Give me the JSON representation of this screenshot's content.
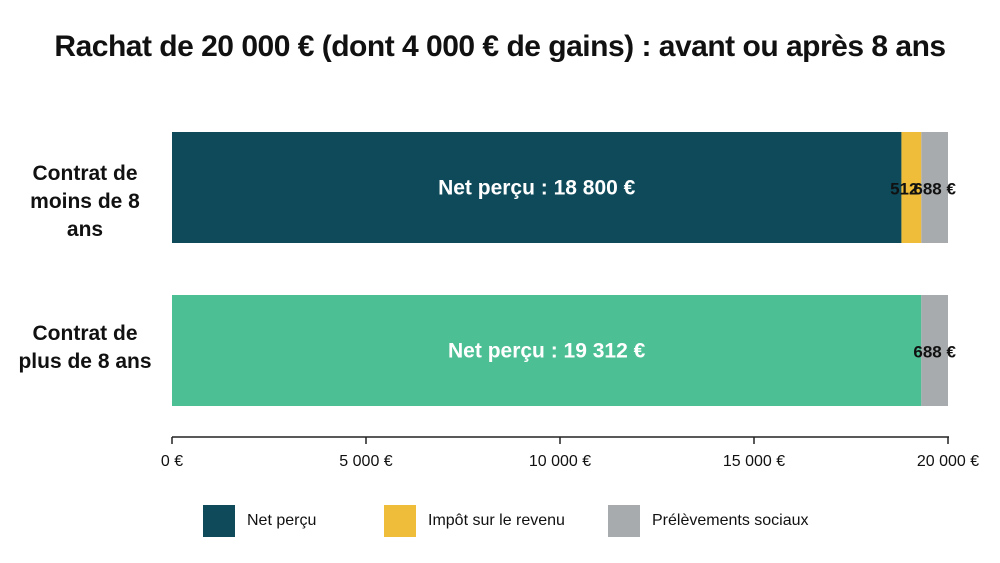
{
  "chart_data": {
    "type": "bar",
    "orientation": "horizontal",
    "stacked": true,
    "title": "Rachat de 20 000 € (dont 4 000 € de gains) : avant ou après 8 ans",
    "categories": [
      "Contrat de moins de 8 ans",
      "Contrat de plus de 8 ans"
    ],
    "category_lines": [
      [
        "Contrat de",
        "moins de 8 ans"
      ],
      [
        "Contrat de",
        "plus de 8 ans"
      ]
    ],
    "series": [
      {
        "name": "Net perçu",
        "values": [
          18800,
          19312
        ],
        "colors": [
          "#0e4a5a",
          "#4cbf94"
        ],
        "labels": [
          "Net perçu : 18 800 €",
          "Net perçu : 19 312 €"
        ],
        "label_color": "#ffffff"
      },
      {
        "name": "Impôt sur le revenu",
        "values": [
          512,
          0
        ],
        "colors": [
          "#f0bd3a",
          "#f0bd3a"
        ],
        "labels": [
          "512 €",
          ""
        ],
        "label_color": "#111111"
      },
      {
        "name": "Prélèvements sociaux",
        "values": [
          688,
          688
        ],
        "colors": [
          "#a8abad",
          "#a8abad"
        ],
        "labels": [
          "688 €",
          "688 €"
        ],
        "label_color": "#111111"
      }
    ],
    "legend_colors": [
      "#0e4a5a",
      "#f0bd3a",
      "#a8abad"
    ],
    "xlim": [
      0,
      20000
    ],
    "xticks": [
      0,
      5000,
      10000,
      15000,
      20000
    ],
    "xtick_labels": [
      "0 €",
      "5 000 €",
      "10 000 €",
      "15 000 €",
      "20 000 €"
    ],
    "grid": false,
    "legend_position": "bottom"
  }
}
